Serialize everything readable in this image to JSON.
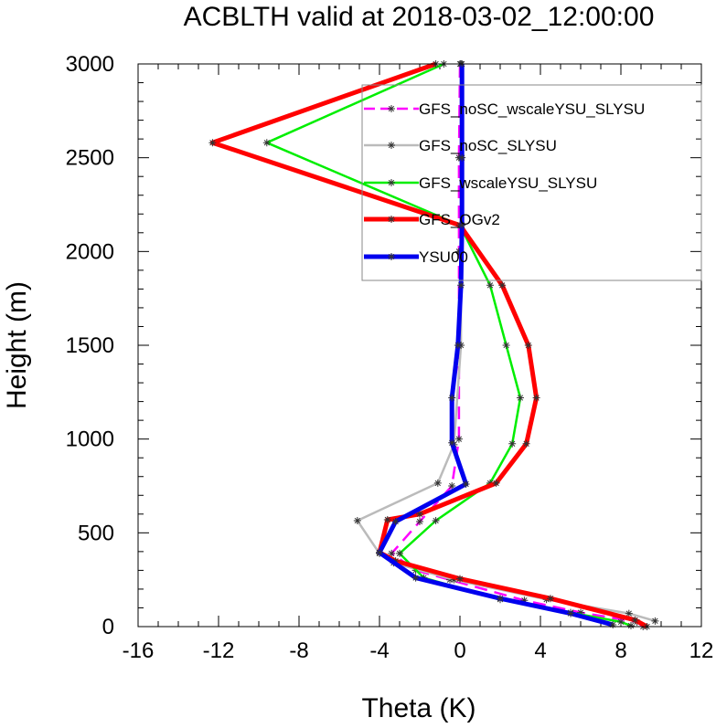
{
  "chart_data": {
    "type": "line",
    "title": "ACBLTH valid at 2018-03-02_12:00:00",
    "xlabel": "Theta (K)",
    "ylabel": "Height (m)",
    "xlim": [
      -16,
      12
    ],
    "ylim": [
      0,
      3000
    ],
    "xticks": [
      "-16",
      "-12",
      "-8",
      "-4",
      "0",
      "4",
      "8",
      "12"
    ],
    "yticks": [
      "0",
      "500",
      "1000",
      "1500",
      "2000",
      "2500",
      "3000"
    ],
    "legend_position": "top-right",
    "grid": false,
    "series": [
      {
        "name": "GFS_noSC_wscaleYSU_SLYSU",
        "color": "#ff00ff",
        "dash": true,
        "width": 2.5,
        "points": [
          [
            9.1,
            0
          ],
          [
            8.8,
            25
          ],
          [
            6.0,
            75
          ],
          [
            3.2,
            140
          ],
          [
            -0.5,
            250
          ],
          [
            -2.2,
            300
          ],
          [
            -3.4,
            390
          ],
          [
            -2.0,
            560
          ],
          [
            -0.4,
            750
          ],
          [
            -0.05,
            1000
          ],
          [
            -0.05,
            1500
          ],
          [
            -0.05,
            2000
          ],
          [
            -0.05,
            2500
          ],
          [
            0.0,
            3000
          ]
        ]
      },
      {
        "name": "GFS_noSC_SLYSU",
        "color": "#bbbbbb",
        "dash": false,
        "width": 2.5,
        "points": [
          [
            9.7,
            30
          ],
          [
            8.4,
            70
          ],
          [
            4.3,
            145
          ],
          [
            -0.3,
            250
          ],
          [
            -3.3,
            340
          ],
          [
            -4.0,
            390
          ],
          [
            -5.1,
            565
          ],
          [
            -1.1,
            765
          ],
          [
            -0.3,
            970
          ],
          [
            0.05,
            1500
          ],
          [
            0.05,
            2000
          ],
          [
            0.05,
            2500
          ],
          [
            0.05,
            3000
          ]
        ]
      },
      {
        "name": "GFS_wscaleYSU_SLYSU",
        "color": "#00ee00",
        "dash": false,
        "width": 2.5,
        "points": [
          [
            8.5,
            5
          ],
          [
            8.0,
            25
          ],
          [
            5.5,
            75
          ],
          [
            2.0,
            145
          ],
          [
            -1.8,
            260
          ],
          [
            -3.0,
            390
          ],
          [
            -1.2,
            565
          ],
          [
            1.5,
            765
          ],
          [
            2.6,
            975
          ],
          [
            3.0,
            1220
          ],
          [
            2.3,
            1500
          ],
          [
            1.5,
            1820
          ],
          [
            0.0,
            2140
          ],
          [
            -9.6,
            2580
          ],
          [
            -0.8,
            3000
          ]
        ]
      },
      {
        "name": "GFS_OGv2",
        "color": "#ff0000",
        "dash": false,
        "width": 5,
        "points": [
          [
            9.3,
            0
          ],
          [
            8.7,
            35
          ],
          [
            4.5,
            150
          ],
          [
            0.0,
            255
          ],
          [
            -3.2,
            350
          ],
          [
            -4.0,
            395
          ],
          [
            -3.6,
            570
          ],
          [
            -2.0,
            600
          ],
          [
            1.8,
            765
          ],
          [
            3.3,
            975
          ],
          [
            3.8,
            1220
          ],
          [
            3.4,
            1500
          ],
          [
            2.1,
            1820
          ],
          [
            0.0,
            2140
          ],
          [
            -12.3,
            2580
          ],
          [
            -1.2,
            3000
          ]
        ]
      },
      {
        "name": "YSU00",
        "color": "#0000ee",
        "dash": false,
        "width": 5,
        "points": [
          [
            7.6,
            10
          ],
          [
            5.5,
            70
          ],
          [
            2.0,
            150
          ],
          [
            -2.2,
            260
          ],
          [
            -4.0,
            395
          ],
          [
            -3.2,
            560
          ],
          [
            0.3,
            760
          ],
          [
            -0.4,
            980
          ],
          [
            -0.4,
            1220
          ],
          [
            -0.1,
            1500
          ],
          [
            0.05,
            1820
          ],
          [
            0.1,
            2140
          ],
          [
            0.1,
            2500
          ],
          [
            0.1,
            3000
          ]
        ]
      }
    ]
  }
}
